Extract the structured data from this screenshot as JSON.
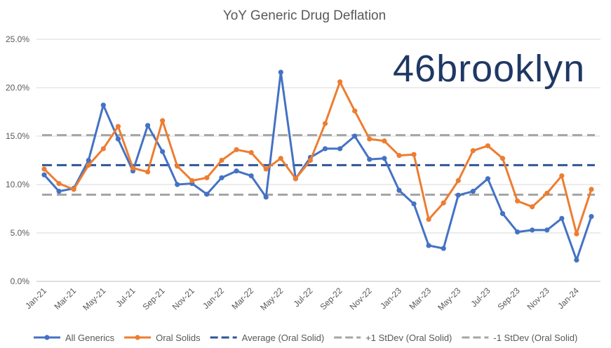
{
  "chart_data": {
    "type": "line",
    "title": "YoY Generic Drug Deflation",
    "xlabel": "",
    "ylabel": "",
    "ylim": [
      0,
      25
    ],
    "y_tick_values": [
      0,
      5,
      10,
      15,
      20,
      25
    ],
    "y_tick_labels": [
      "0.0%",
      "5.0%",
      "10.0%",
      "15.0%",
      "20.0%",
      "25.0%"
    ],
    "x_tick_labels": [
      "Jan-21",
      "Mar-21",
      "May-21",
      "Jul-21",
      "Sep-21",
      "Nov-21",
      "Jan-22",
      "Mar-22",
      "May-22",
      "Jul-22",
      "Sep-22",
      "Nov-22",
      "Jan-23",
      "Mar-23",
      "May-23",
      "Jul-23",
      "Sep-23",
      "Nov-23",
      "Jan-24"
    ],
    "tick_every": 2,
    "series": [
      {
        "name": "All Generics",
        "color": "#4472c4",
        "style": "solid-markers",
        "values": [
          11.0,
          9.3,
          9.6,
          12.5,
          18.2,
          14.7,
          11.4,
          16.1,
          13.4,
          10.0,
          10.1,
          9.0,
          10.7,
          11.4,
          10.9,
          8.7,
          21.6,
          10.6,
          12.8,
          13.7,
          13.7,
          15.0,
          12.6,
          12.7,
          9.4,
          8.0,
          3.7,
          3.4,
          8.9,
          9.3,
          10.6,
          7.0,
          5.1,
          5.3,
          5.3,
          6.5,
          2.2,
          6.7
        ]
      },
      {
        "name": "Oral Solids",
        "color": "#ed7d31",
        "style": "solid-markers",
        "values": [
          11.6,
          10.1,
          9.5,
          12.0,
          13.7,
          16.0,
          11.7,
          11.3,
          16.6,
          11.9,
          10.4,
          10.7,
          12.5,
          13.6,
          13.3,
          11.6,
          12.7,
          10.6,
          12.5,
          16.3,
          20.6,
          17.6,
          14.7,
          14.5,
          13.0,
          13.1,
          6.4,
          8.1,
          10.4,
          13.5,
          14.0,
          12.7,
          8.3,
          7.7,
          9.1,
          10.9,
          4.9,
          9.5
        ]
      },
      {
        "name": "Average (Oral Solid)",
        "color": "#2f5597",
        "style": "dashed",
        "value": 12.0
      },
      {
        "name": "+1 StDev (Oral Solid)",
        "color": "#a5a5a5",
        "style": "dashed",
        "value": 15.1
      },
      {
        "name": "-1 StDev (Oral Solid)",
        "color": "#a5a5a5",
        "style": "dashed",
        "value": 8.95
      }
    ],
    "legend_position": "bottom",
    "grid": true
  },
  "logo": {
    "text": "46brooklyn",
    "color": "#1f3864"
  },
  "colors": {
    "grid": "#d9d9d9",
    "axis": "#bfbfbf",
    "text": "#595959"
  }
}
